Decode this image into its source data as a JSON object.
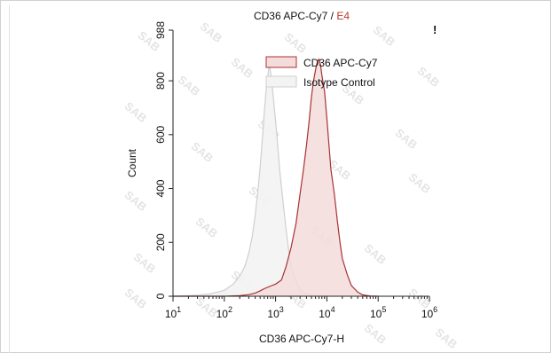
{
  "chart_data": {
    "type": "area",
    "title": {
      "main": "CD36 APC-Cy7 / ",
      "gate": "E4",
      "gate_color": "#c0392b",
      "marker": "!"
    },
    "xlabel": "CD36 APC-Cy7-H",
    "ylabel": "Count",
    "x_scale": "log",
    "xlim": [
      10,
      1000000
    ],
    "ylim": [
      0,
      988
    ],
    "x_ticks": [
      {
        "base": "10",
        "exp": "1",
        "value": 10
      },
      {
        "base": "10",
        "exp": "2",
        "value": 100
      },
      {
        "base": "10",
        "exp": "3",
        "value": 1000
      },
      {
        "base": "10",
        "exp": "4",
        "value": 10000
      },
      {
        "base": "10",
        "exp": "5",
        "value": 100000
      },
      {
        "base": "10",
        "exp": "6",
        "value": 1000000
      }
    ],
    "y_ticks": [
      "0",
      "200",
      "400",
      "600",
      "800",
      "988"
    ],
    "legend_position": "top-right",
    "series": [
      {
        "name": "CD36 APC-Cy7",
        "stroke": "#a83232",
        "fill": "#f4dcdc",
        "points": [
          [
            10,
            0
          ],
          [
            100,
            0
          ],
          [
            200,
            2
          ],
          [
            300,
            6
          ],
          [
            400,
            12
          ],
          [
            500,
            20
          ],
          [
            600,
            28
          ],
          [
            800,
            38
          ],
          [
            1000,
            45
          ],
          [
            1300,
            60
          ],
          [
            1600,
            110
          ],
          [
            2000,
            180
          ],
          [
            2500,
            270
          ],
          [
            3000,
            380
          ],
          [
            3500,
            470
          ],
          [
            4000,
            560
          ],
          [
            4500,
            650
          ],
          [
            5000,
            740
          ],
          [
            5500,
            800
          ],
          [
            6000,
            840
          ],
          [
            6500,
            870
          ],
          [
            7000,
            880
          ],
          [
            7500,
            860
          ],
          [
            8000,
            820
          ],
          [
            9000,
            760
          ],
          [
            10000,
            660
          ],
          [
            11000,
            560
          ],
          [
            12000,
            470
          ],
          [
            14000,
            380
          ],
          [
            16000,
            280
          ],
          [
            18000,
            200
          ],
          [
            20000,
            140
          ],
          [
            25000,
            80
          ],
          [
            30000,
            40
          ],
          [
            40000,
            15
          ],
          [
            50000,
            5
          ],
          [
            70000,
            1
          ],
          [
            100000,
            0
          ]
        ]
      },
      {
        "name": "Isotype Control",
        "stroke": "#cfcfcf",
        "fill": "#f3f3f3",
        "points": [
          [
            10,
            0
          ],
          [
            20,
            2
          ],
          [
            30,
            4
          ],
          [
            50,
            8
          ],
          [
            70,
            14
          ],
          [
            100,
            22
          ],
          [
            150,
            45
          ],
          [
            200,
            75
          ],
          [
            250,
            110
          ],
          [
            300,
            160
          ],
          [
            350,
            220
          ],
          [
            400,
            300
          ],
          [
            450,
            390
          ],
          [
            500,
            480
          ],
          [
            550,
            580
          ],
          [
            600,
            680
          ],
          [
            650,
            760
          ],
          [
            700,
            810
          ],
          [
            750,
            860
          ],
          [
            800,
            830
          ],
          [
            850,
            790
          ],
          [
            900,
            740
          ],
          [
            1000,
            650
          ],
          [
            1100,
            560
          ],
          [
            1200,
            470
          ],
          [
            1400,
            350
          ],
          [
            1600,
            250
          ],
          [
            1800,
            170
          ],
          [
            2000,
            110
          ],
          [
            2500,
            55
          ],
          [
            3000,
            22
          ],
          [
            4000,
            8
          ],
          [
            6000,
            2
          ],
          [
            10000,
            0
          ]
        ]
      }
    ]
  },
  "watermark": "SAB"
}
